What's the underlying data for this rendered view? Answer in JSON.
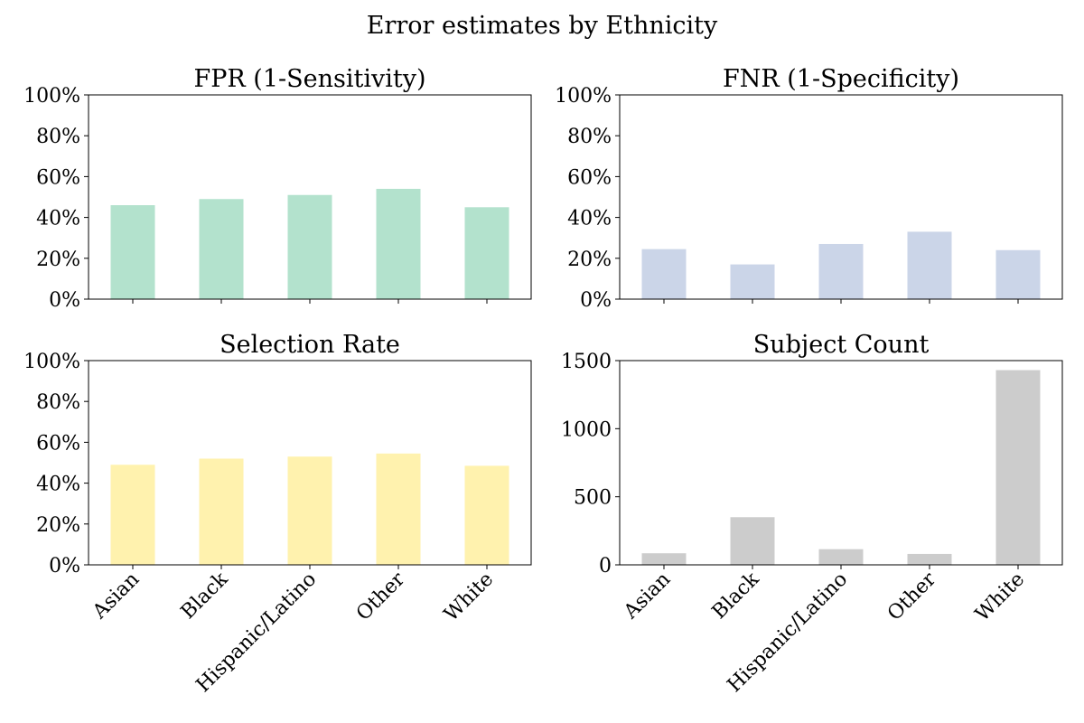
{
  "figure": {
    "title": "Error estimates by Ethnicity"
  },
  "chart_data": [
    {
      "type": "bar",
      "title": "FPR (1-Sensitivity)",
      "categories": [
        "Asian",
        "Black",
        "Hispanic/Latino",
        "Other",
        "White"
      ],
      "values": [
        0.46,
        0.49,
        0.51,
        0.54,
        0.45
      ],
      "ylim": [
        0,
        1
      ],
      "yticks": [
        0,
        0.2,
        0.4,
        0.6,
        0.8,
        1.0
      ],
      "ytick_labels": [
        "0%",
        "20%",
        "40%",
        "60%",
        "80%",
        "100%"
      ],
      "color": "#b3e2cd",
      "show_x_labels": false,
      "grid": false
    },
    {
      "type": "bar",
      "title": "FNR (1-Specificity)",
      "categories": [
        "Asian",
        "Black",
        "Hispanic/Latino",
        "Other",
        "White"
      ],
      "values": [
        0.245,
        0.17,
        0.27,
        0.33,
        0.24
      ],
      "ylim": [
        0,
        1
      ],
      "yticks": [
        0,
        0.2,
        0.4,
        0.6,
        0.8,
        1.0
      ],
      "ytick_labels": [
        "0%",
        "20%",
        "40%",
        "60%",
        "80%",
        "100%"
      ],
      "color": "#cbd5e8",
      "show_x_labels": false,
      "grid": false
    },
    {
      "type": "bar",
      "title": "Selection Rate",
      "categories": [
        "Asian",
        "Black",
        "Hispanic/Latino",
        "Other",
        "White"
      ],
      "values": [
        0.49,
        0.52,
        0.53,
        0.545,
        0.485
      ],
      "ylim": [
        0,
        1
      ],
      "yticks": [
        0,
        0.2,
        0.4,
        0.6,
        0.8,
        1.0
      ],
      "ytick_labels": [
        "0%",
        "20%",
        "40%",
        "60%",
        "80%",
        "100%"
      ],
      "color": "#fff2ae",
      "show_x_labels": true,
      "grid": false
    },
    {
      "type": "bar",
      "title": "Subject Count",
      "categories": [
        "Asian",
        "Black",
        "Hispanic/Latino",
        "Other",
        "White"
      ],
      "values": [
        85,
        350,
        115,
        80,
        1430
      ],
      "ylim": [
        0,
        1500
      ],
      "yticks": [
        0,
        500,
        1000,
        1500
      ],
      "ytick_labels": [
        "0",
        "500",
        "1000",
        "1500"
      ],
      "color": "#cccccc",
      "show_x_labels": true,
      "grid": false
    }
  ]
}
